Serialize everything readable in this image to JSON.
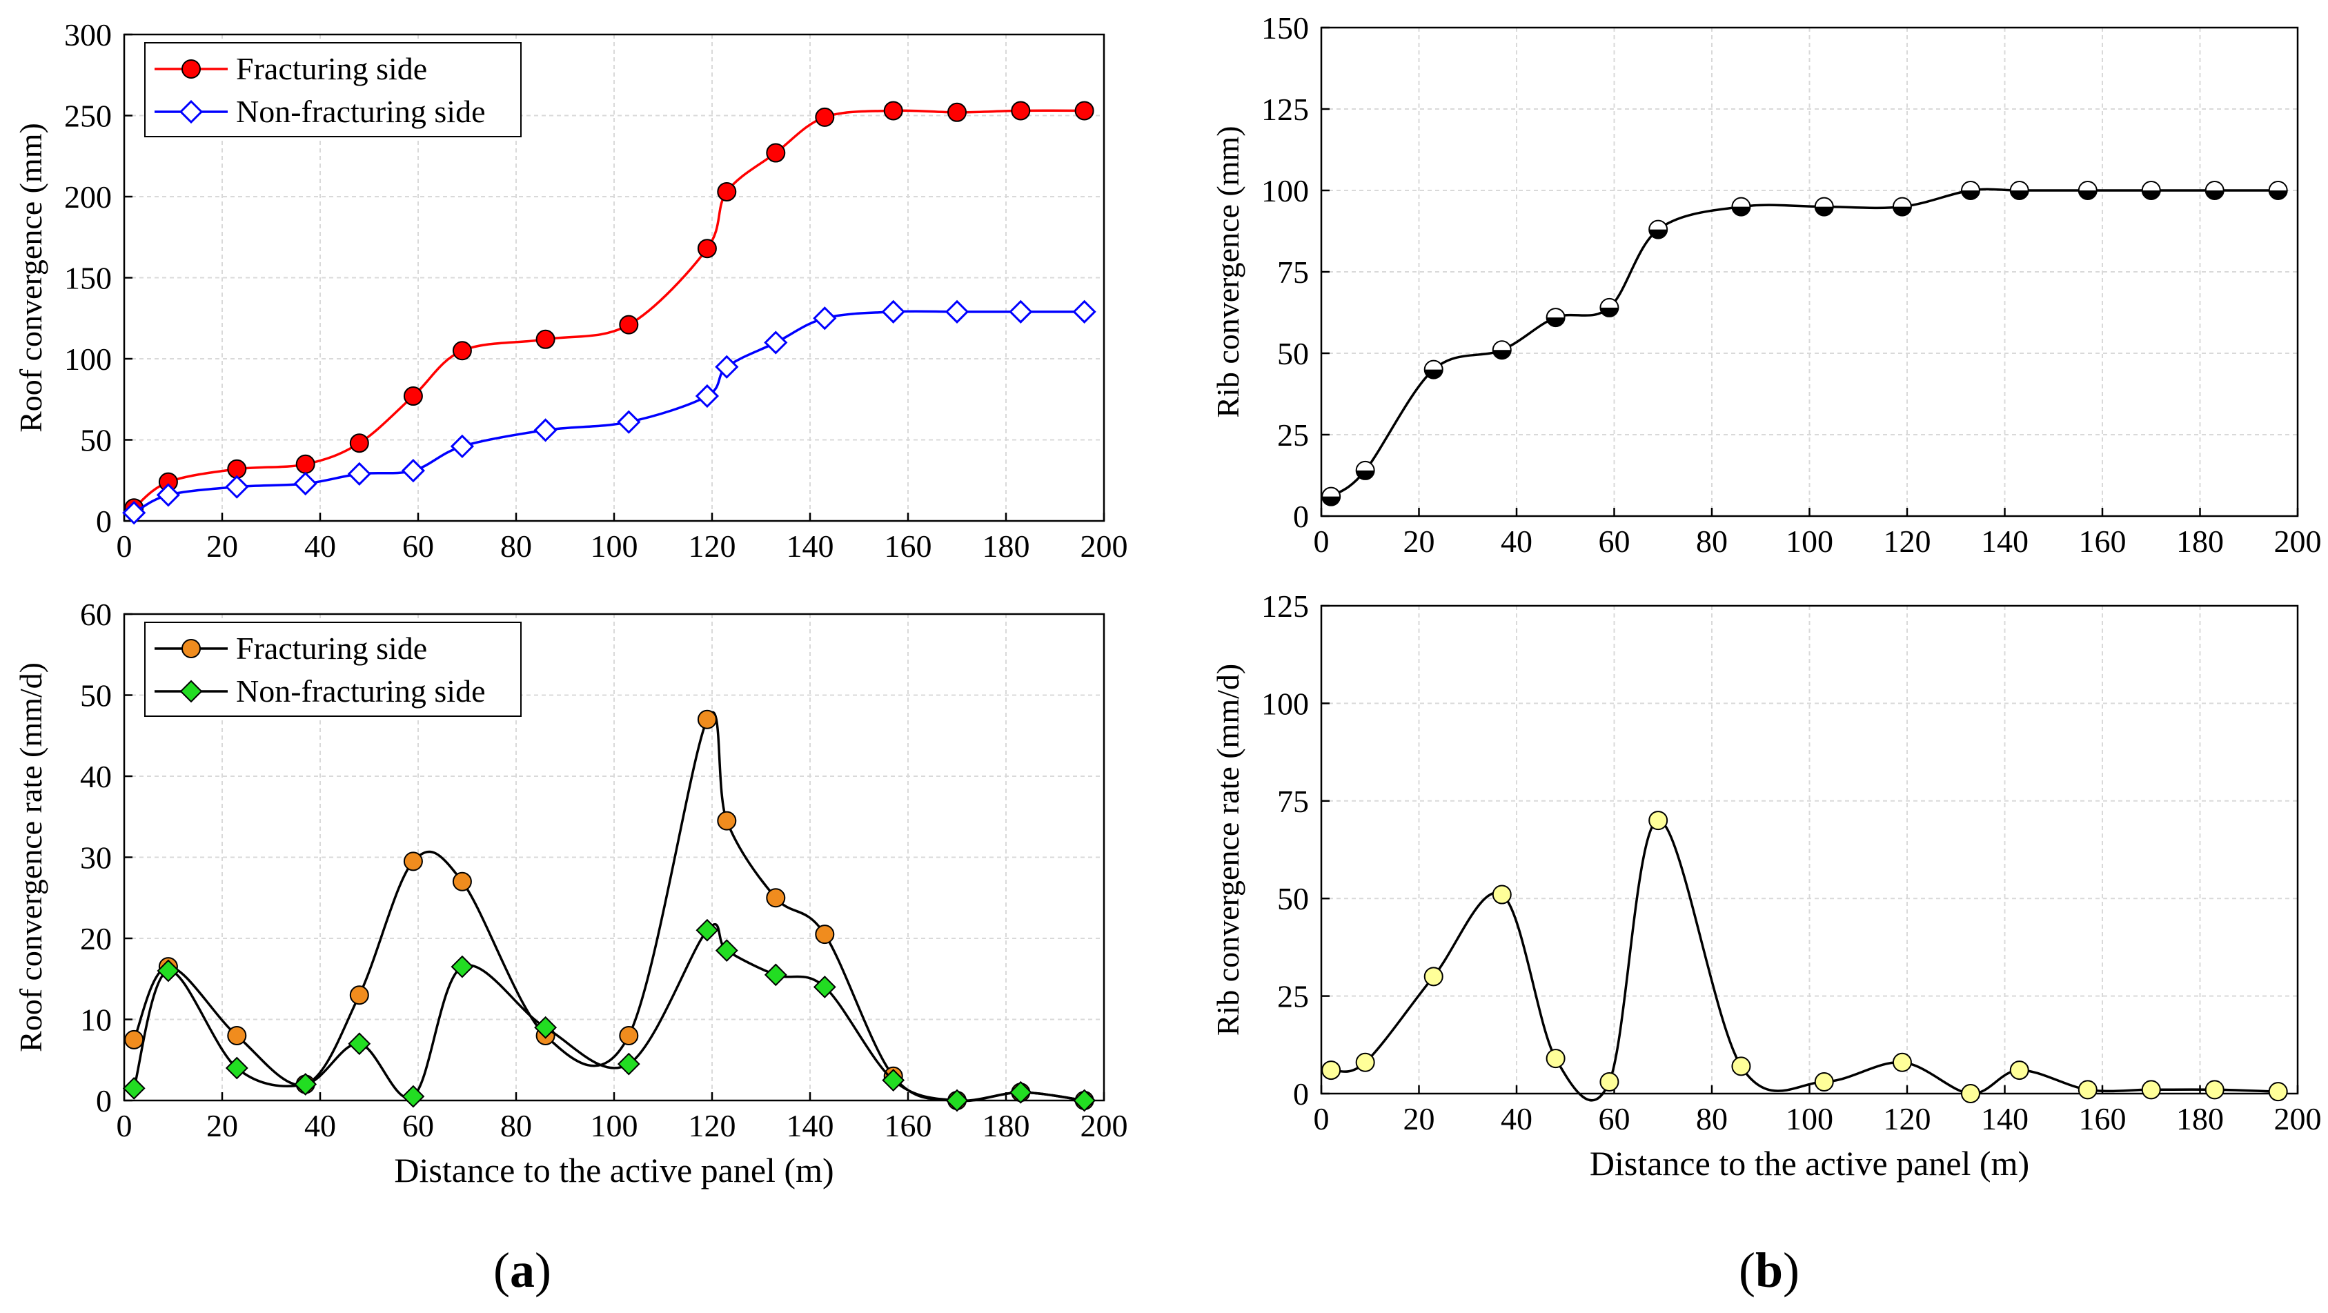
{
  "figure": {
    "panel_labels": {
      "a": "a",
      "b": "b"
    }
  },
  "chart_data": [
    {
      "id": "roof-convergence",
      "type": "line",
      "xlabel": "",
      "ylabel": "Roof convergence (mm)",
      "xlim": [
        0,
        200
      ],
      "ylim": [
        0,
        300
      ],
      "xticks": [
        0,
        20,
        40,
        60,
        80,
        100,
        120,
        140,
        160,
        180,
        200
      ],
      "yticks": [
        0,
        50,
        100,
        150,
        200,
        250,
        300
      ],
      "grid": true,
      "legend": "top-left",
      "series": [
        {
          "name": "Fracturing side",
          "line_color": "#ff0000",
          "marker": "circle",
          "marker_color": "#ff0000",
          "x": [
            2,
            9,
            23,
            37,
            48,
            59,
            69,
            86,
            103,
            119,
            123,
            133,
            143,
            157,
            170,
            183,
            196
          ],
          "y": [
            8,
            24,
            32,
            35,
            48,
            77,
            105,
            112,
            121,
            168,
            203,
            227,
            249,
            253,
            252,
            253,
            253
          ]
        },
        {
          "name": "Non-fracturing side",
          "line_color": "#0000ff",
          "marker": "diamond-open",
          "marker_color": "#0000ff",
          "x": [
            2,
            9,
            23,
            37,
            48,
            59,
            69,
            86,
            103,
            119,
            123,
            133,
            143,
            157,
            170,
            183,
            196
          ],
          "y": [
            5,
            16,
            21,
            23,
            29,
            31,
            46,
            56,
            61,
            77,
            95,
            110,
            125,
            129,
            129,
            129,
            129
          ]
        }
      ]
    },
    {
      "id": "rib-convergence",
      "type": "line",
      "xlabel": "",
      "ylabel": "Rib convergence (mm)",
      "xlim": [
        0,
        200
      ],
      "ylim": [
        0,
        150
      ],
      "xticks": [
        0,
        20,
        40,
        60,
        80,
        100,
        120,
        140,
        160,
        180,
        200
      ],
      "yticks": [
        0,
        25,
        50,
        75,
        100,
        125,
        150
      ],
      "grid": true,
      "series": [
        {
          "name": "Rib convergence",
          "line_color": "#000000",
          "marker": "circle-half",
          "marker_color": "#000000",
          "x": [
            2,
            9,
            23,
            37,
            48,
            59,
            69,
            86,
            103,
            119,
            133,
            143,
            157,
            170,
            183,
            196
          ],
          "y": [
            6,
            14,
            45,
            51,
            61,
            64,
            88,
            95,
            95,
            95,
            100,
            100,
            100,
            100,
            100,
            100
          ]
        }
      ]
    },
    {
      "id": "roof-convergence-rate",
      "type": "line",
      "xlabel": "Distance to the active panel (m)",
      "ylabel": "Roof convergence rate (mm/d)",
      "xlim": [
        0,
        200
      ],
      "ylim": [
        0,
        60
      ],
      "xticks": [
        0,
        20,
        40,
        60,
        80,
        100,
        120,
        140,
        160,
        180,
        200
      ],
      "yticks": [
        0,
        10,
        20,
        30,
        40,
        50,
        60
      ],
      "grid": true,
      "legend": "top-left",
      "series": [
        {
          "name": "Fracturing side",
          "line_color": "#000000",
          "marker": "circle",
          "marker_color": "#f08c1e",
          "x": [
            2,
            9,
            23,
            37,
            48,
            59,
            69,
            86,
            103,
            119,
            123,
            133,
            143,
            157,
            170,
            183,
            196
          ],
          "y": [
            7.5,
            16.5,
            8,
            2,
            13,
            29.5,
            27,
            8,
            8,
            47,
            34.5,
            25,
            20.5,
            3,
            0,
            1,
            0
          ]
        },
        {
          "name": "Non-fracturing side",
          "line_color": "#000000",
          "marker": "diamond",
          "marker_color": "#22dd22",
          "x": [
            2,
            9,
            23,
            37,
            48,
            59,
            69,
            86,
            103,
            119,
            123,
            133,
            143,
            157,
            170,
            183,
            196
          ],
          "y": [
            1.5,
            16,
            4,
            2,
            7,
            0.5,
            16.5,
            9,
            4.5,
            21,
            18.5,
            15.5,
            14,
            2.5,
            0,
            1,
            0
          ]
        }
      ]
    },
    {
      "id": "rib-convergence-rate",
      "type": "line",
      "xlabel": "Distance to the active panel (m)",
      "ylabel": "Rib convergence rate (mm/d)",
      "xlim": [
        0,
        200
      ],
      "ylim": [
        0,
        125
      ],
      "xticks": [
        0,
        20,
        40,
        60,
        80,
        100,
        120,
        140,
        160,
        180,
        200
      ],
      "yticks": [
        0,
        25,
        50,
        75,
        100,
        125
      ],
      "grid": true,
      "series": [
        {
          "name": "Rib convergence rate",
          "line_color": "#000000",
          "marker": "circle",
          "marker_color": "#ffff99",
          "x": [
            2,
            9,
            23,
            37,
            48,
            59,
            69,
            86,
            103,
            119,
            133,
            143,
            157,
            170,
            183,
            196
          ],
          "y": [
            6,
            8,
            30,
            51,
            9,
            3,
            70,
            7,
            3,
            8,
            0,
            6,
            1,
            1,
            1,
            0.5
          ]
        }
      ]
    }
  ]
}
